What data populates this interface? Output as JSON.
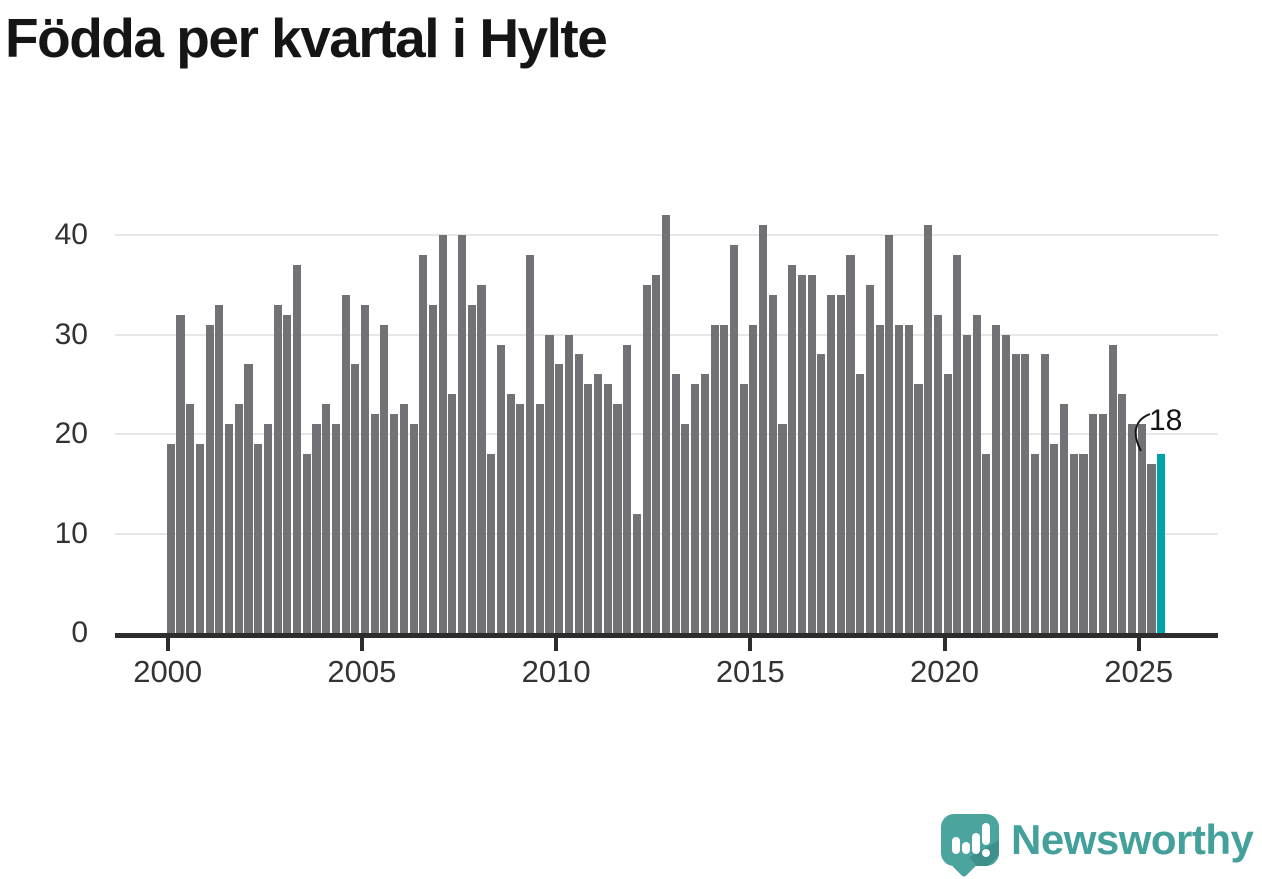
{
  "title": "Födda per kvartal i Hylte",
  "annotation": {
    "label": "18"
  },
  "logo": {
    "text": "Newsworthy",
    "icon": "newsworthy-speech-bubble-chart-icon"
  },
  "chart_data": {
    "type": "bar",
    "title": "Födda per kvartal i Hylte",
    "frequency": "quarterly",
    "start": "2000-Q1",
    "end": "2025-Q3",
    "xlabel": "",
    "ylabel": "",
    "ylim": [
      0,
      44
    ],
    "grid": "horizontal",
    "yticks": [
      0,
      10,
      20,
      30,
      40
    ],
    "xticks": [
      2000,
      2005,
      2010,
      2015,
      2020,
      2025
    ],
    "values": [
      19,
      32,
      23,
      19,
      31,
      33,
      21,
      23,
      27,
      19,
      21,
      33,
      32,
      37,
      18,
      21,
      23,
      21,
      34,
      27,
      33,
      22,
      31,
      22,
      23,
      21,
      38,
      33,
      40,
      24,
      40,
      33,
      35,
      18,
      29,
      24,
      23,
      38,
      23,
      30,
      27,
      30,
      28,
      25,
      26,
      25,
      23,
      29,
      12,
      35,
      36,
      42,
      26,
      21,
      25,
      26,
      31,
      31,
      39,
      25,
      31,
      41,
      34,
      21,
      37,
      36,
      36,
      28,
      34,
      34,
      38,
      26,
      35,
      31,
      40,
      31,
      31,
      25,
      41,
      32,
      26,
      38,
      30,
      32,
      18,
      31,
      30,
      28,
      28,
      18,
      28,
      19,
      23,
      18,
      18,
      22,
      22,
      29,
      24,
      21,
      21,
      17,
      18
    ],
    "highlight_last_value": 18,
    "colors": {
      "bar": "#717176",
      "highlight": "#00a3a8",
      "grid": "#e7e7e7",
      "axis": "#2d2d2d",
      "tick_label": "#333333",
      "annotation": "#151515",
      "logo": "#44a09b"
    }
  }
}
